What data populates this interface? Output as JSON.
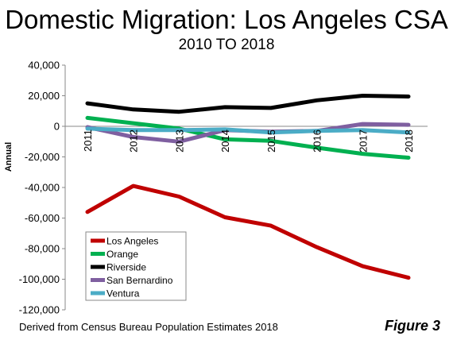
{
  "chart_data": {
    "type": "line",
    "title": "Domestic Migration: Los Angeles CSA",
    "subtitle": "2010 TO 2018",
    "ylabel": "Annual",
    "xlabel": "",
    "categories": [
      "2011",
      "2012",
      "2013",
      "2014",
      "2015",
      "2016",
      "2017",
      "2018"
    ],
    "ylim": [
      -120000,
      40000
    ],
    "yticks": [
      40000,
      20000,
      0,
      -20000,
      -40000,
      -60000,
      -80000,
      -100000,
      -120000
    ],
    "ytick_labels": [
      "40,000",
      "20,000",
      "0",
      "-20,000",
      "-40,000",
      "-60,000",
      "-80,000",
      "-100,000",
      "-120,000"
    ],
    "grid": false,
    "legend_position": "bottom-left",
    "series": [
      {
        "name": "Los Angeles",
        "color": "#c00000",
        "values": [
          -56000,
          -39000,
          -46000,
          -59500,
          -65000,
          -79000,
          -91500,
          -99000
        ]
      },
      {
        "name": "Orange",
        "color": "#00b050",
        "values": [
          5500,
          2000,
          -1500,
          -8500,
          -9500,
          -14000,
          -18000,
          -20500
        ]
      },
      {
        "name": "Riverside",
        "color": "#000000",
        "values": [
          15000,
          11000,
          9500,
          12500,
          12000,
          17000,
          20000,
          19500
        ]
      },
      {
        "name": "San Bernardino",
        "color": "#7f5fa0",
        "values": [
          -500,
          -7000,
          -10000,
          -2500,
          -3500,
          -3000,
          1500,
          1000
        ]
      },
      {
        "name": "Ventura",
        "color": "#4bacc6",
        "values": [
          -1500,
          -2500,
          -2500,
          -2000,
          -4000,
          -3000,
          -2500,
          -4000
        ]
      }
    ]
  },
  "footer": {
    "source": "Derived from Census Bureau Population Estimates 2018",
    "figure": "Figure 3"
  }
}
